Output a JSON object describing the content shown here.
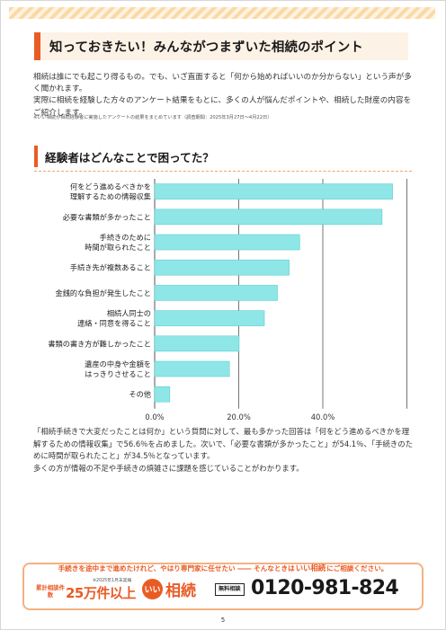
{
  "header": {
    "title": "知っておきたい！みんながつまずいた相続のポイント"
  },
  "intro": {
    "paragraph1": "相続は誰にでも起こり得るもの。でも、いざ直面すると「何から始めればいいのか分からない」という声が多く聞かれます。",
    "paragraph2": "実際に相続を経験した方々のアンケート結果をもとに、多くの人が悩んだポイントや、相続した財産の内容をご紹介します。",
    "note": "※いい相続が相続経験者に実施したアンケートの結果をまとめています（調査期間：2025年3月27日～4月22日）"
  },
  "section": {
    "title": "経験者はどんなことで困ってた？"
  },
  "chart_data": {
    "type": "bar",
    "orientation": "horizontal",
    "categories": [
      [
        "何をどう進めるべきかを",
        "理解するための情報収集"
      ],
      [
        "必要な書類が多かったこと"
      ],
      [
        "手続きのために",
        "時間が取られたこと"
      ],
      [
        "手続き先が複数あること"
      ],
      [
        "金銭的な負担が発生したこと"
      ],
      [
        "相続人同士の",
        "連絡・同意を得ること"
      ],
      [
        "書類の書き方が難しかったこと"
      ],
      [
        "遺産の中身や金額を",
        "はっきりさせること"
      ],
      [
        "その他"
      ]
    ],
    "values": [
      56.6,
      54.1,
      34.5,
      32.0,
      29.2,
      26.1,
      20.1,
      17.8,
      3.6
    ],
    "xlim": [
      0,
      60
    ],
    "xticks": [
      0,
      20,
      40
    ],
    "tick_labels": [
      "0.0%",
      "20.0%",
      "40.0%"
    ],
    "grid": true,
    "bar_color": "#8fe6e6",
    "bar_border_color": "#5ecfd3"
  },
  "result": {
    "paragraph1": "「相続手続きで大変だったことは何か」という質問に対して、最も多かった回答は「何をどう進めるべきかを理解するための情報収集」で56.6％を占めました。次いで、「必要な書類が多かったこと」が54.1％、「手続きのために時間が取られたこと」が34.5％となっています。",
    "paragraph2": "多くの方が情報の不足や手続きの煩雑さに課題を感じていることがわかります。"
  },
  "footer": {
    "banner_lead": "手続きを途中まで進めたけれど、やはり専門家に任せたい ―― そんなときは",
    "brand_inline": "いい相続",
    "banner_tail": "にご相談ください。",
    "cases_label": "累計相談件数",
    "cases_note": "※2025年1月末実績",
    "cases_value": "25万件以上",
    "logo_mark": "いい",
    "logo_text": "相続",
    "free_label": "無料相談",
    "phone": "0120-981-824"
  },
  "page": {
    "number": "5"
  },
  "colors": {
    "accent": "#e95b25",
    "stripe": "#fbd9a6",
    "title_bg": "#fdf2e6"
  }
}
